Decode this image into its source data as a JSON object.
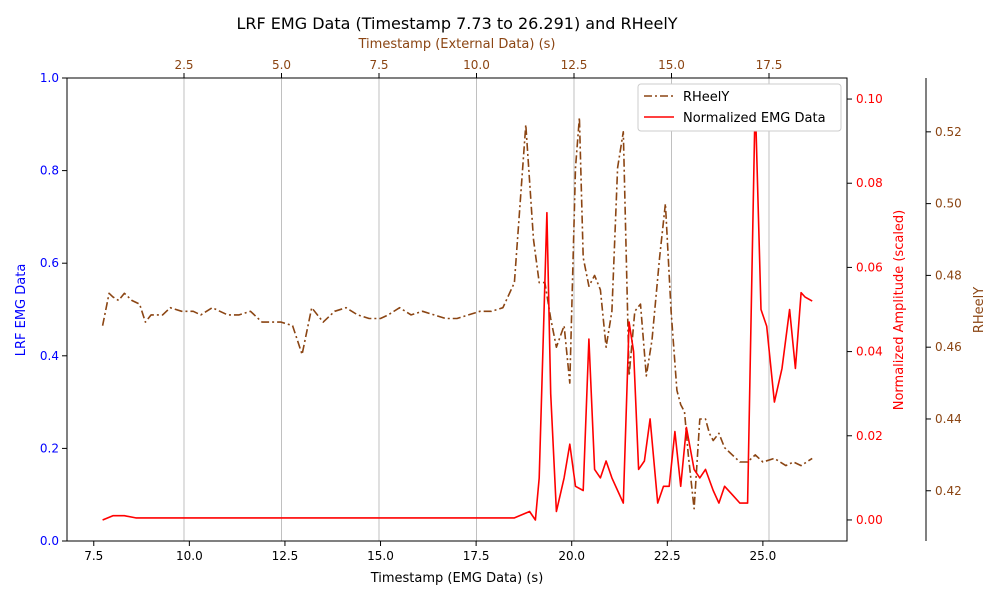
{
  "chart_data": {
    "type": "line",
    "title": "LRF EMG Data (Timestamp 7.73 to 26.291) and RHeelY",
    "xlabel": "Timestamp (EMG Data) (s)",
    "x_top_label": "Timestamp (External Data) (s)",
    "ylabel_left": "LRF EMG Data",
    "ylabel_right": "Normalized Amplitude (scaled)",
    "ylabel_right2": "RHeelY",
    "xlim": [
      6.8,
      27.2
    ],
    "x_ticks": [
      7.5,
      10.0,
      12.5,
      15.0,
      17.5,
      20.0,
      22.5,
      25.0
    ],
    "x_tick_labels": [
      "7.5",
      "10.0",
      "12.5",
      "15.0",
      "17.5",
      "20.0",
      "22.5",
      "25.0"
    ],
    "x_top_lim": [
      -0.5,
      19.5
    ],
    "x_top_ticks": [
      2.5,
      5.0,
      7.5,
      10.0,
      12.5,
      15.0,
      17.5
    ],
    "x_top_tick_labels": [
      "2.5",
      "5.0",
      "7.5",
      "10.0",
      "12.5",
      "15.0",
      "17.5"
    ],
    "ylim_left": [
      0.0,
      1.0
    ],
    "y_left_ticks": [
      0.0,
      0.2,
      0.4,
      0.6,
      0.8,
      1.0
    ],
    "y_left_tick_labels": [
      "0.0",
      "0.2",
      "0.4",
      "0.6",
      "0.8",
      "1.0"
    ],
    "ylim_right": [
      -0.005,
      0.105
    ],
    "y_right_ticks": [
      0.0,
      0.02,
      0.04,
      0.06,
      0.08,
      0.1
    ],
    "y_right_tick_labels": [
      "0.00",
      "0.02",
      "0.04",
      "0.06",
      "0.08",
      "0.10"
    ],
    "ylim_right2": [
      0.406,
      0.535
    ],
    "y_right2_ticks": [
      0.42,
      0.44,
      0.46,
      0.48,
      0.5,
      0.52
    ],
    "y_right2_tick_labels": [
      "0.42",
      "0.44",
      "0.46",
      "0.48",
      "0.50",
      "0.52"
    ],
    "grid": "vertical lines at top-axis ticks",
    "legend": {
      "placement": "top-right"
    },
    "colors": {
      "emg": "#ff0000",
      "rheel": "#8b4513",
      "left_axis": "#0000ff",
      "right_axis": "#ff0000",
      "right2_axis": "#8b4513",
      "grid": "#b0b0b0"
    },
    "series": [
      {
        "name": "RHeelY",
        "axis": "right2",
        "style": "dashdot",
        "x": [
          7.73,
          7.9,
          8.0,
          8.15,
          8.3,
          8.5,
          8.7,
          8.85,
          9.0,
          9.3,
          9.5,
          9.8,
          10.1,
          10.3,
          10.6,
          11.0,
          11.3,
          11.6,
          11.9,
          12.1,
          12.4,
          12.7,
          12.95,
          13.2,
          13.5,
          13.8,
          14.1,
          14.4,
          14.7,
          15.0,
          15.2,
          15.5,
          15.8,
          16.1,
          16.4,
          16.7,
          17.0,
          17.3,
          17.6,
          17.9,
          18.2,
          18.5,
          18.8,
          19.0,
          19.15,
          19.3,
          19.45,
          19.6,
          19.8,
          19.95,
          20.1,
          20.2,
          20.3,
          20.45,
          20.6,
          20.75,
          20.9,
          21.05,
          21.2,
          21.35,
          21.5,
          21.65,
          21.8,
          21.95,
          22.1,
          22.3,
          22.45,
          22.6,
          22.75,
          22.85,
          22.95,
          23.05,
          23.2,
          23.35,
          23.5,
          23.6,
          23.7,
          23.85,
          24.0,
          24.2,
          24.4,
          24.6,
          24.8,
          25.0,
          25.3,
          25.6,
          25.8,
          26.0,
          26.291
        ],
        "y": [
          0.466,
          0.475,
          0.474,
          0.473,
          0.475,
          0.473,
          0.472,
          0.467,
          0.469,
          0.469,
          0.471,
          0.47,
          0.47,
          0.469,
          0.471,
          0.469,
          0.469,
          0.47,
          0.467,
          0.467,
          0.467,
          0.466,
          0.458,
          0.471,
          0.467,
          0.47,
          0.471,
          0.469,
          0.468,
          0.468,
          0.469,
          0.471,
          0.469,
          0.47,
          0.469,
          0.468,
          0.468,
          0.469,
          0.47,
          0.47,
          0.471,
          0.478,
          0.522,
          0.49,
          0.478,
          0.478,
          0.468,
          0.46,
          0.466,
          0.45,
          0.51,
          0.524,
          0.485,
          0.477,
          0.48,
          0.476,
          0.46,
          0.47,
          0.51,
          0.52,
          0.452,
          0.47,
          0.472,
          0.452,
          0.462,
          0.485,
          0.5,
          0.47,
          0.448,
          0.444,
          0.442,
          0.43,
          0.415,
          0.44,
          0.44,
          0.436,
          0.434,
          0.436,
          0.432,
          0.43,
          0.428,
          0.428,
          0.43,
          0.428,
          0.429,
          0.427,
          0.428,
          0.427,
          0.429
        ]
      },
      {
        "name": "Normalized EMG Data",
        "axis": "right",
        "style": "solid",
        "x": [
          7.73,
          8.0,
          8.3,
          8.6,
          9.0,
          9.5,
          10.0,
          10.5,
          11.0,
          11.5,
          12.0,
          12.3,
          12.6,
          13.0,
          13.5,
          14.0,
          14.5,
          15.0,
          15.5,
          16.0,
          16.5,
          17.0,
          17.5,
          18.0,
          18.5,
          18.9,
          19.05,
          19.15,
          19.35,
          19.45,
          19.6,
          19.8,
          19.95,
          20.1,
          20.3,
          20.45,
          20.6,
          20.75,
          20.9,
          21.05,
          21.2,
          21.35,
          21.5,
          21.62,
          21.75,
          21.9,
          22.05,
          22.25,
          22.4,
          22.55,
          22.7,
          22.85,
          23.0,
          23.2,
          23.35,
          23.5,
          23.7,
          23.85,
          24.0,
          24.2,
          24.4,
          24.6,
          24.8,
          24.95,
          25.1,
          25.3,
          25.5,
          25.7,
          25.85,
          26.0,
          26.1,
          26.291
        ],
        "y": [
          0.0,
          0.001,
          0.001,
          0.0005,
          0.0005,
          0.0005,
          0.0005,
          0.0005,
          0.0005,
          0.0005,
          0.0005,
          0.0005,
          0.0005,
          0.0005,
          0.0005,
          0.0005,
          0.0005,
          0.0005,
          0.0005,
          0.0005,
          0.0005,
          0.0005,
          0.0005,
          0.0005,
          0.0005,
          0.002,
          0.0,
          0.01,
          0.073,
          0.03,
          0.002,
          0.01,
          0.018,
          0.008,
          0.007,
          0.043,
          0.012,
          0.01,
          0.014,
          0.01,
          0.007,
          0.004,
          0.047,
          0.04,
          0.012,
          0.014,
          0.024,
          0.004,
          0.008,
          0.008,
          0.021,
          0.008,
          0.022,
          0.012,
          0.01,
          0.012,
          0.007,
          0.004,
          0.008,
          0.006,
          0.004,
          0.004,
          0.1,
          0.05,
          0.046,
          0.028,
          0.036,
          0.05,
          0.036,
          0.054,
          0.053,
          0.052
        ]
      }
    ]
  }
}
